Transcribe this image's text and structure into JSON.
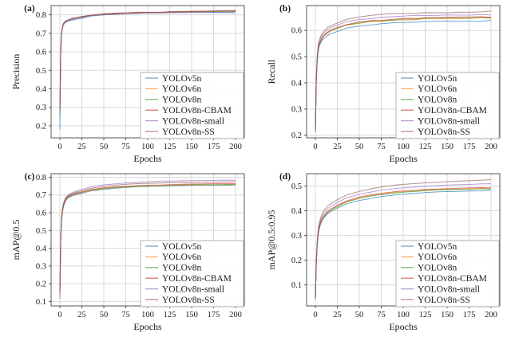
{
  "figure": {
    "background": "#ffffff",
    "frame_color": "#555555",
    "grid_color": "#d9d9d9",
    "legend_border_color": "#b3b3b3",
    "line_opacity": 0.65
  },
  "chart_data": [
    {
      "type": "line",
      "panel_label": "(a)",
      "xlabel": "Epochs",
      "ylabel": "Precision",
      "xticks": [
        0,
        25,
        50,
        75,
        100,
        125,
        150,
        175,
        200
      ],
      "xlim": [
        -10,
        210
      ],
      "yticks": [
        0.2,
        0.3,
        0.4,
        0.5,
        0.6,
        0.7,
        0.8
      ],
      "ylim": [
        0.135,
        0.85
      ],
      "grid": true,
      "legend_position": "lower right",
      "noise": 0.0018,
      "x": [
        0,
        1,
        2,
        3,
        4,
        6,
        8,
        10,
        14,
        18,
        25,
        35,
        50,
        65,
        75,
        90,
        100,
        115,
        125,
        140,
        150,
        165,
        175,
        190,
        200
      ],
      "series": [
        {
          "name": "YOLOv5n",
          "color": "#1f77b4",
          "values": [
            0.18,
            0.6,
            0.695,
            0.73,
            0.745,
            0.757,
            0.763,
            0.767,
            0.772,
            0.776,
            0.783,
            0.792,
            0.8,
            0.804,
            0.806,
            0.808,
            0.81,
            0.811,
            0.812,
            0.813,
            0.814,
            0.814,
            0.815,
            0.815,
            0.815
          ]
        },
        {
          "name": "YOLOv6n",
          "color": "#ff7f0e",
          "values": [
            0.27,
            0.61,
            0.7,
            0.735,
            0.75,
            0.762,
            0.768,
            0.772,
            0.778,
            0.782,
            0.79,
            0.797,
            0.803,
            0.807,
            0.809,
            0.811,
            0.812,
            0.814,
            0.815,
            0.816,
            0.817,
            0.818,
            0.819,
            0.82,
            0.82
          ]
        },
        {
          "name": "YOLOv8n",
          "color": "#2ca02c",
          "values": [
            0.25,
            0.605,
            0.698,
            0.733,
            0.748,
            0.76,
            0.766,
            0.77,
            0.776,
            0.78,
            0.788,
            0.795,
            0.802,
            0.806,
            0.808,
            0.81,
            0.811,
            0.813,
            0.814,
            0.815,
            0.816,
            0.817,
            0.817,
            0.818,
            0.818
          ]
        },
        {
          "name": "YOLOv8n-CBAM",
          "color": "#d62728",
          "values": [
            0.28,
            0.615,
            0.702,
            0.737,
            0.752,
            0.763,
            0.769,
            0.773,
            0.779,
            0.783,
            0.791,
            0.798,
            0.804,
            0.808,
            0.81,
            0.812,
            0.813,
            0.815,
            0.816,
            0.817,
            0.818,
            0.819,
            0.82,
            0.821,
            0.821
          ]
        },
        {
          "name": "YOLOv8n-small",
          "color": "#9467bd",
          "values": [
            0.26,
            0.608,
            0.7,
            0.734,
            0.749,
            0.76,
            0.766,
            0.77,
            0.776,
            0.78,
            0.787,
            0.794,
            0.8,
            0.804,
            0.806,
            0.808,
            0.809,
            0.81,
            0.811,
            0.812,
            0.812,
            0.813,
            0.813,
            0.813,
            0.812
          ]
        },
        {
          "name": "YOLOv8n-SS",
          "color": "#8c564b",
          "values": [
            0.3,
            0.62,
            0.705,
            0.74,
            0.754,
            0.765,
            0.771,
            0.775,
            0.781,
            0.785,
            0.792,
            0.799,
            0.805,
            0.809,
            0.811,
            0.813,
            0.814,
            0.816,
            0.817,
            0.818,
            0.819,
            0.82,
            0.821,
            0.822,
            0.822
          ]
        }
      ]
    },
    {
      "type": "line",
      "panel_label": "(b)",
      "xlabel": "Epochs",
      "ylabel": "Recall",
      "xticks": [
        0,
        25,
        50,
        75,
        100,
        125,
        150,
        175,
        200
      ],
      "xlim": [
        -10,
        210
      ],
      "yticks": [
        0.2,
        0.3,
        0.4,
        0.5,
        0.6
      ],
      "ylim": [
        0.19,
        0.695
      ],
      "grid": true,
      "legend_position": "lower right",
      "noise": 0.002,
      "x": [
        0,
        1,
        2,
        3,
        4,
        6,
        8,
        10,
        14,
        18,
        25,
        35,
        50,
        65,
        75,
        90,
        100,
        115,
        125,
        140,
        150,
        165,
        175,
        190,
        200
      ],
      "series": [
        {
          "name": "YOLOv5n",
          "color": "#1f77b4",
          "values": [
            0.21,
            0.4,
            0.475,
            0.515,
            0.535,
            0.553,
            0.564,
            0.572,
            0.582,
            0.589,
            0.598,
            0.608,
            0.617,
            0.622,
            0.625,
            0.628,
            0.63,
            0.632,
            0.633,
            0.634,
            0.635,
            0.636,
            0.636,
            0.637,
            0.638
          ]
        },
        {
          "name": "YOLOv6n",
          "color": "#ff7f0e",
          "values": [
            0.215,
            0.41,
            0.485,
            0.523,
            0.543,
            0.56,
            0.572,
            0.58,
            0.591,
            0.599,
            0.609,
            0.619,
            0.628,
            0.633,
            0.636,
            0.639,
            0.641,
            0.643,
            0.644,
            0.645,
            0.645,
            0.646,
            0.646,
            0.647,
            0.647
          ]
        },
        {
          "name": "YOLOv8n",
          "color": "#2ca02c",
          "values": [
            0.212,
            0.405,
            0.482,
            0.521,
            0.541,
            0.559,
            0.571,
            0.579,
            0.59,
            0.598,
            0.609,
            0.62,
            0.629,
            0.635,
            0.638,
            0.641,
            0.643,
            0.645,
            0.646,
            0.647,
            0.647,
            0.648,
            0.648,
            0.649,
            0.649
          ]
        },
        {
          "name": "YOLOv8n-CBAM",
          "color": "#d62728",
          "values": [
            0.218,
            0.412,
            0.487,
            0.525,
            0.545,
            0.562,
            0.574,
            0.582,
            0.594,
            0.602,
            0.612,
            0.622,
            0.631,
            0.637,
            0.64,
            0.643,
            0.645,
            0.647,
            0.648,
            0.649,
            0.649,
            0.65,
            0.65,
            0.651,
            0.651
          ]
        },
        {
          "name": "YOLOv8n-small",
          "color": "#9467bd",
          "values": [
            0.214,
            0.415,
            0.49,
            0.53,
            0.552,
            0.57,
            0.582,
            0.591,
            0.603,
            0.611,
            0.621,
            0.632,
            0.641,
            0.646,
            0.649,
            0.652,
            0.654,
            0.656,
            0.657,
            0.658,
            0.659,
            0.66,
            0.66,
            0.661,
            0.661
          ]
        },
        {
          "name": "YOLOv8n-SS",
          "color": "#8c564b",
          "values": [
            0.216,
            0.42,
            0.497,
            0.538,
            0.558,
            0.577,
            0.59,
            0.599,
            0.611,
            0.619,
            0.63,
            0.643,
            0.653,
            0.658,
            0.661,
            0.664,
            0.665,
            0.667,
            0.668,
            0.669,
            0.669,
            0.67,
            0.671,
            0.671,
            0.672
          ]
        }
      ]
    },
    {
      "type": "line",
      "panel_label": "(c)",
      "xlabel": "Epochs",
      "ylabel": "mAP@0.5",
      "xticks": [
        0,
        25,
        50,
        75,
        100,
        125,
        150,
        175,
        200
      ],
      "xlim": [
        -10,
        210
      ],
      "yticks": [
        0.1,
        0.2,
        0.3,
        0.4,
        0.5,
        0.6,
        0.7,
        0.8
      ],
      "ylim": [
        0.075,
        0.82
      ],
      "grid": true,
      "legend_position": "lower right",
      "noise": 0.0008,
      "x": [
        0,
        1,
        2,
        3,
        4,
        6,
        8,
        10,
        14,
        18,
        25,
        35,
        50,
        65,
        75,
        90,
        100,
        115,
        125,
        140,
        150,
        165,
        175,
        190,
        200
      ],
      "series": [
        {
          "name": "YOLOv5n",
          "color": "#1f77b4",
          "values": [
            0.115,
            0.45,
            0.555,
            0.605,
            0.632,
            0.662,
            0.676,
            0.685,
            0.695,
            0.702,
            0.71,
            0.722,
            0.732,
            0.739,
            0.742,
            0.746,
            0.748,
            0.75,
            0.751,
            0.752,
            0.753,
            0.754,
            0.754,
            0.755,
            0.755
          ]
        },
        {
          "name": "YOLOv6n",
          "color": "#ff7f0e",
          "values": [
            0.13,
            0.455,
            0.56,
            0.61,
            0.636,
            0.665,
            0.679,
            0.688,
            0.698,
            0.705,
            0.713,
            0.725,
            0.735,
            0.742,
            0.745,
            0.748,
            0.75,
            0.752,
            0.753,
            0.755,
            0.756,
            0.757,
            0.757,
            0.758,
            0.758
          ]
        },
        {
          "name": "YOLOv8n",
          "color": "#2ca02c",
          "values": [
            0.175,
            0.46,
            0.563,
            0.612,
            0.638,
            0.667,
            0.681,
            0.69,
            0.7,
            0.707,
            0.715,
            0.727,
            0.737,
            0.743,
            0.746,
            0.749,
            0.751,
            0.753,
            0.754,
            0.756,
            0.757,
            0.758,
            0.758,
            0.759,
            0.759
          ]
        },
        {
          "name": "YOLOv8n-CBAM",
          "color": "#d62728",
          "values": [
            0.15,
            0.465,
            0.567,
            0.616,
            0.642,
            0.67,
            0.684,
            0.693,
            0.703,
            0.71,
            0.718,
            0.73,
            0.74,
            0.746,
            0.75,
            0.753,
            0.755,
            0.757,
            0.758,
            0.76,
            0.761,
            0.762,
            0.763,
            0.764,
            0.764
          ]
        },
        {
          "name": "YOLOv8n-small",
          "color": "#9467bd",
          "values": [
            0.16,
            0.475,
            0.578,
            0.627,
            0.653,
            0.68,
            0.694,
            0.703,
            0.713,
            0.721,
            0.731,
            0.745,
            0.757,
            0.764,
            0.768,
            0.772,
            0.774,
            0.777,
            0.778,
            0.78,
            0.781,
            0.782,
            0.783,
            0.784,
            0.784
          ]
        },
        {
          "name": "YOLOv8n-SS",
          "color": "#8c564b",
          "values": [
            0.14,
            0.47,
            0.572,
            0.621,
            0.647,
            0.675,
            0.689,
            0.698,
            0.708,
            0.715,
            0.725,
            0.738,
            0.749,
            0.756,
            0.76,
            0.764,
            0.766,
            0.768,
            0.769,
            0.771,
            0.771,
            0.772,
            0.773,
            0.774,
            0.774
          ]
        }
      ]
    },
    {
      "type": "line",
      "panel_label": "(d)",
      "xlabel": "Epochs",
      "ylabel": "mAP@0.5:0.95",
      "xticks": [
        0,
        25,
        50,
        75,
        100,
        125,
        150,
        175,
        200
      ],
      "xlim": [
        -10,
        210
      ],
      "yticks": [
        0.1,
        0.2,
        0.3,
        0.4,
        0.5
      ],
      "ylim": [
        0.015,
        0.55
      ],
      "grid": true,
      "legend_position": "lower right",
      "noise": 0.0008,
      "x": [
        0,
        1,
        2,
        3,
        4,
        6,
        8,
        10,
        14,
        18,
        25,
        35,
        50,
        65,
        75,
        90,
        100,
        115,
        125,
        140,
        150,
        165,
        175,
        190,
        200
      ],
      "series": [
        {
          "name": "YOLOv5n",
          "color": "#1f77b4",
          "values": [
            0.04,
            0.18,
            0.255,
            0.295,
            0.32,
            0.347,
            0.362,
            0.373,
            0.388,
            0.398,
            0.411,
            0.427,
            0.442,
            0.451,
            0.457,
            0.463,
            0.467,
            0.471,
            0.473,
            0.476,
            0.477,
            0.479,
            0.48,
            0.481,
            0.482
          ]
        },
        {
          "name": "YOLOv6n",
          "color": "#ff7f0e",
          "values": [
            0.045,
            0.185,
            0.26,
            0.3,
            0.326,
            0.352,
            0.368,
            0.379,
            0.394,
            0.405,
            0.419,
            0.436,
            0.452,
            0.462,
            0.468,
            0.474,
            0.477,
            0.481,
            0.483,
            0.486,
            0.487,
            0.488,
            0.489,
            0.49,
            0.49
          ]
        },
        {
          "name": "YOLOv8n",
          "color": "#2ca02c",
          "values": [
            0.042,
            0.182,
            0.258,
            0.298,
            0.324,
            0.35,
            0.366,
            0.377,
            0.392,
            0.403,
            0.417,
            0.434,
            0.45,
            0.46,
            0.466,
            0.472,
            0.475,
            0.479,
            0.481,
            0.484,
            0.485,
            0.486,
            0.487,
            0.488,
            0.488
          ]
        },
        {
          "name": "YOLOv8n-CBAM",
          "color": "#d62728",
          "values": [
            0.047,
            0.188,
            0.262,
            0.303,
            0.328,
            0.355,
            0.37,
            0.381,
            0.397,
            0.408,
            0.422,
            0.439,
            0.455,
            0.465,
            0.471,
            0.477,
            0.48,
            0.484,
            0.486,
            0.488,
            0.489,
            0.491,
            0.492,
            0.493,
            0.493
          ]
        },
        {
          "name": "YOLOv8n-small",
          "color": "#9467bd",
          "values": [
            0.05,
            0.19,
            0.268,
            0.31,
            0.336,
            0.363,
            0.38,
            0.392,
            0.408,
            0.419,
            0.433,
            0.451,
            0.467,
            0.477,
            0.483,
            0.489,
            0.492,
            0.496,
            0.499,
            0.502,
            0.504,
            0.506,
            0.507,
            0.509,
            0.51
          ]
        },
        {
          "name": "YOLOv8n-SS",
          "color": "#8c564b",
          "values": [
            0.048,
            0.195,
            0.274,
            0.317,
            0.344,
            0.372,
            0.39,
            0.402,
            0.419,
            0.43,
            0.445,
            0.463,
            0.479,
            0.49,
            0.496,
            0.503,
            0.507,
            0.511,
            0.513,
            0.516,
            0.518,
            0.52,
            0.522,
            0.524,
            0.525
          ]
        }
      ]
    }
  ]
}
